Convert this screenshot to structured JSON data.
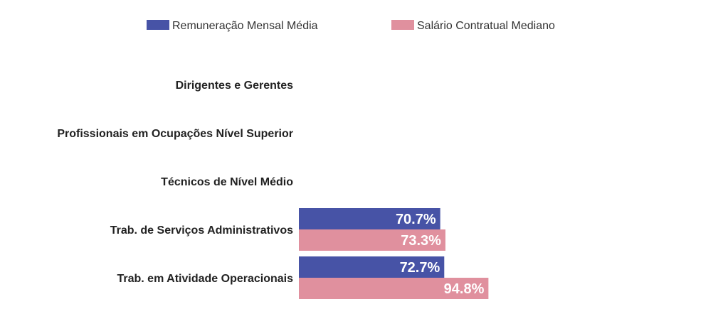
{
  "chart_data": {
    "type": "bar",
    "orientation": "horizontal",
    "categories": [
      "Dirigentes e Gerentes",
      "Profissionais em Ocupações Nível Superior",
      "Técnicos de Nível Médio",
      "Trab. de Serviços Administrativos",
      "Trab. em Atividade Operacionais"
    ],
    "series": [
      {
        "name": "Remuneração Mensal Média",
        "color": "#4753a6",
        "values": [
          null,
          null,
          null,
          70.7,
          72.7
        ],
        "labels": [
          "",
          "",
          "",
          "70.7%",
          "72.7%"
        ]
      },
      {
        "name": "Salário Contratual Mediano",
        "color": "#e0909e",
        "values": [
          null,
          null,
          null,
          73.3,
          94.8
        ],
        "labels": [
          "",
          "",
          "",
          "73.3%",
          "94.8%"
        ]
      }
    ],
    "xlim": [
      0,
      100
    ],
    "unit": "%",
    "grid": false,
    "legend_position": "top-center"
  }
}
